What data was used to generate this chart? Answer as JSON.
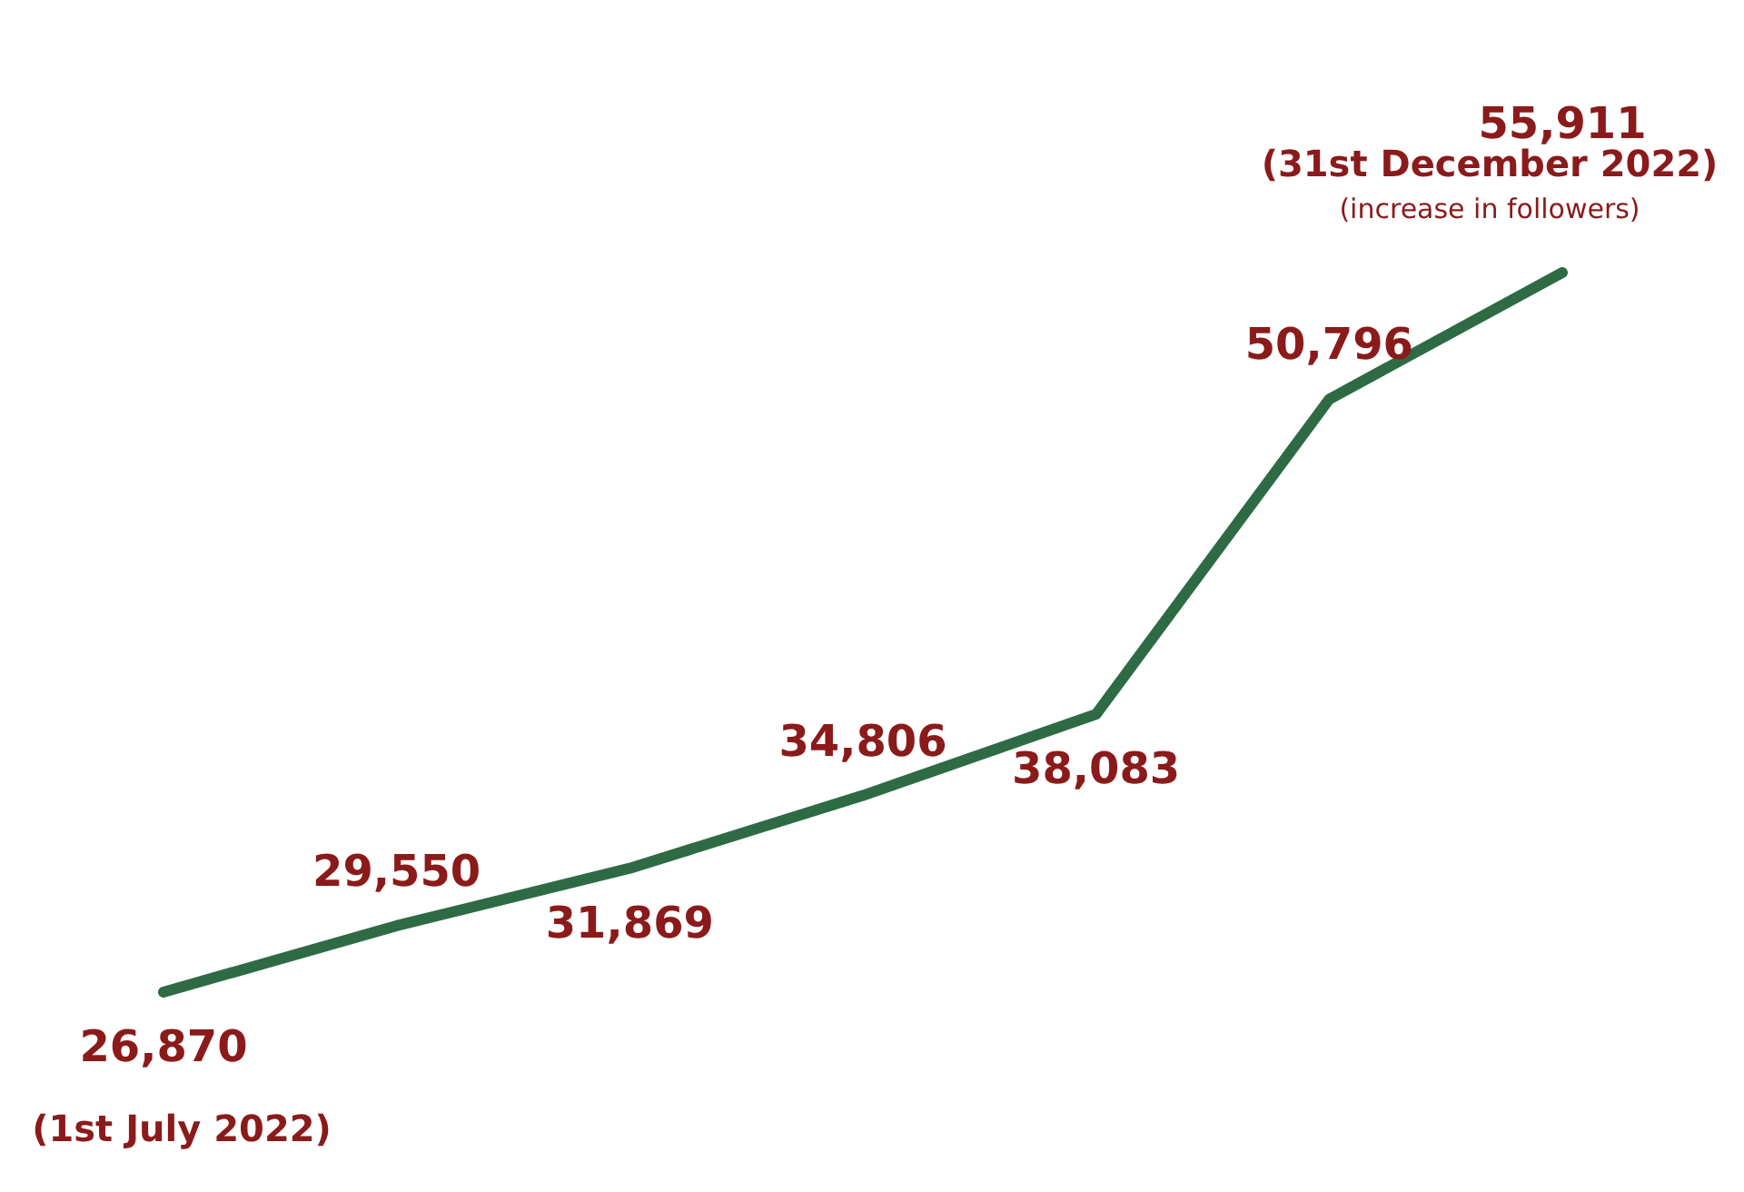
{
  "chart_data": {
    "type": "line",
    "categories": [
      null,
      null,
      null,
      null,
      null,
      null,
      null
    ],
    "series": [
      {
        "color": "#2e6b45",
        "values": [
          26870,
          29550,
          31869,
          34806,
          38083,
          50796,
          55911
        ],
        "value_labels": [
          "26,870",
          "29,550",
          "31,869",
          "34,806",
          "38,083",
          "50,796",
          "55,911"
        ]
      }
    ],
    "tick_labels": false,
    "grid": false,
    "marker": "none",
    "line_style": "solid",
    "annotations": [
      "(1st July 2022)",
      "(31st December 2022)",
      "(increase in followers)"
    ]
  }
}
